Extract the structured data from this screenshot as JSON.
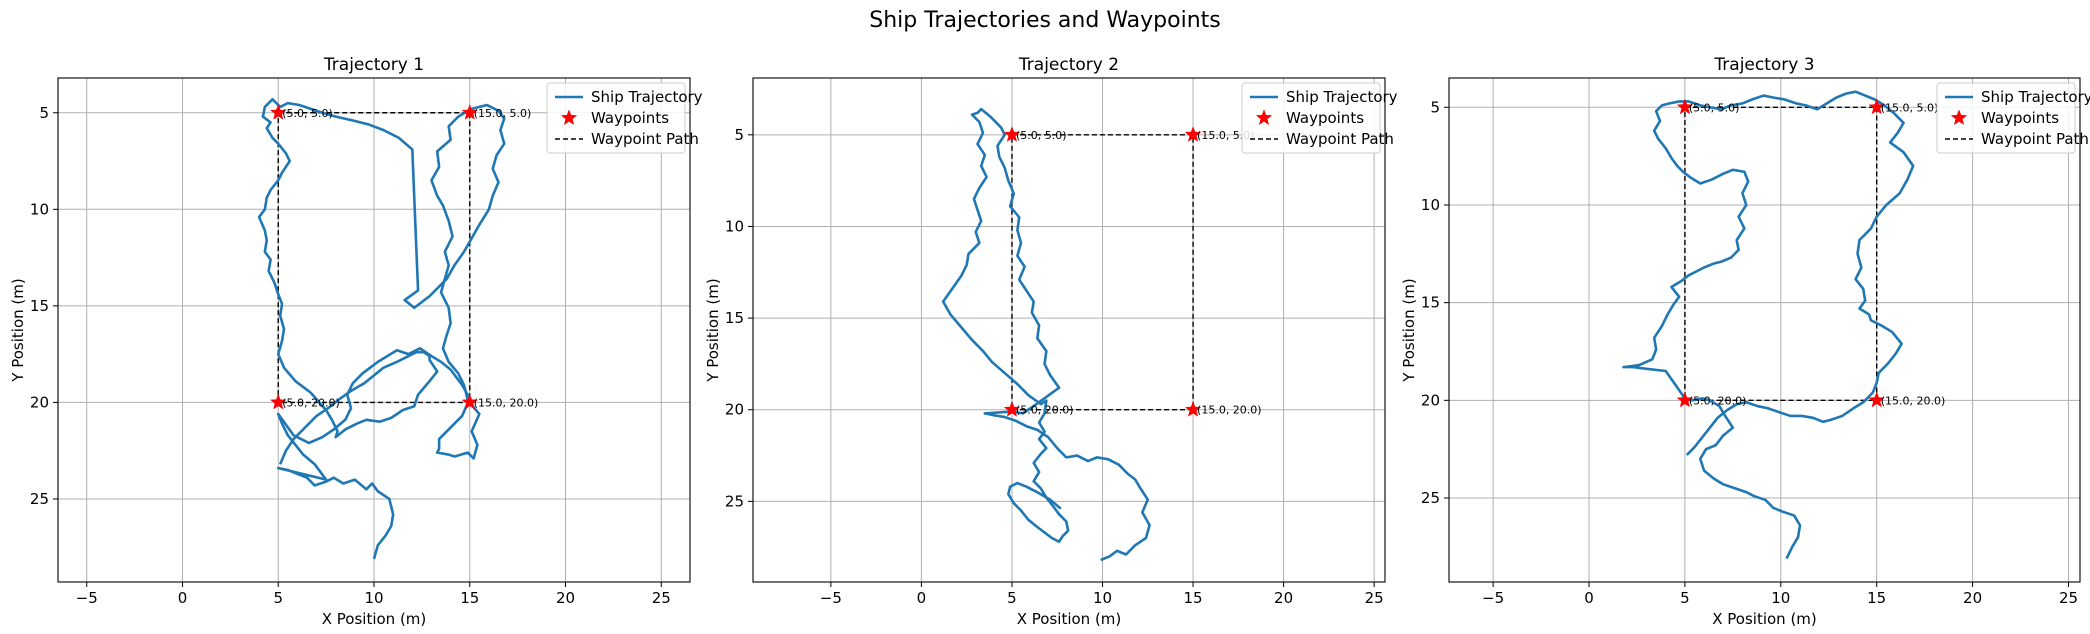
{
  "figure": {
    "title": "Ship Trajectories and Waypoints"
  },
  "colors": {
    "trajectory": "#1f77b4",
    "waypoint": "#ff0000",
    "waypoint_path": "#000000",
    "grid": "#b0b0b0"
  },
  "chart_data": [
    {
      "type": "line",
      "title": "Trajectory 1",
      "xlabel": "X Position (m)",
      "ylabel": "Y Position (m)",
      "xlim": [
        -6.5,
        26.5
      ],
      "ylim": [
        29.3,
        3.2
      ],
      "y_inverted": true,
      "xticks": [
        -5,
        0,
        5,
        10,
        15,
        20,
        25
      ],
      "yticks": [
        5,
        10,
        15,
        20,
        25
      ],
      "grid": true,
      "legend_position": "upper right",
      "legend": [
        "Ship Trajectory",
        "Waypoints",
        "Waypoint Path"
      ],
      "waypoints": [
        {
          "x": 5.0,
          "y": 5.0,
          "label": "(5.0, 5.0)"
        },
        {
          "x": 15.0,
          "y": 5.0,
          "label": "(15.0, 5.0)"
        },
        {
          "x": 15.0,
          "y": 20.0,
          "label": "(15.0, 20.0)"
        },
        {
          "x": 5.0,
          "y": 20.0,
          "label": "(5.0, 20.0)"
        }
      ],
      "waypoint_path": {
        "x": [
          5.0,
          15.0,
          15.0,
          5.0,
          5.0
        ],
        "y": [
          5.0,
          5.0,
          20.0,
          20.0,
          5.0
        ]
      },
      "series": [
        {
          "name": "Ship Trajectory",
          "x": [
            10.0,
            10.2,
            10.6,
            10.9,
            11.0,
            10.8,
            10.2,
            9.9,
            9.6,
            9.0,
            8.4,
            7.9,
            7.5,
            6.9,
            6.5,
            6.0,
            5.5,
            5.0,
            7.5,
            6.9,
            6.3,
            5.9,
            5.5,
            5.2,
            5.0,
            5.8,
            6.6,
            7.3,
            7.9,
            8.5,
            8.8,
            8.6,
            8.9,
            9.4,
            9.8,
            10.2,
            10.7,
            11.2,
            11.8,
            12.4,
            13.0,
            13.5,
            14.0,
            14.6,
            15.0,
            14.6,
            13.9,
            13.4,
            13.4,
            13.3,
            13.9,
            14.2,
            14.9,
            15.2,
            15.4,
            15.1,
            15.5,
            14.9,
            14.7,
            14.4,
            13.9,
            13.6,
            13.8,
            14.0,
            13.9,
            13.5,
            13.7,
            13.9,
            13.7,
            14.1,
            13.9,
            13.6,
            13.3,
            13.0,
            13.4,
            13.3,
            14.0,
            13.9,
            14.4,
            15.1,
            15.9,
            16.5,
            16.8,
            16.6,
            16.8,
            16.4,
            16.2,
            16.5,
            16.2,
            16.0,
            15.5,
            15.1,
            14.7,
            14.2,
            13.8,
            13.3,
            12.9,
            12.5,
            12.1,
            11.6,
            12.3,
            12.0,
            11.3,
            10.5,
            9.7,
            8.9,
            8.0,
            7.3,
            6.7,
            6.1,
            5.5,
            5.1,
            4.7,
            4.3,
            4.2,
            4.6,
            4.4,
            4.7,
            5.0,
            5.4,
            5.6,
            5.2,
            5.0,
            4.6,
            4.4,
            4.3,
            4.0,
            4.3,
            4.4,
            4.3,
            4.6,
            4.5,
            4.8,
            5.0,
            5.2,
            5.1,
            5.3,
            5.2,
            5.0,
            5.3,
            5.9,
            6.7,
            7.5,
            7.8,
            8.1,
            8.0,
            8.5,
            9.1,
            9.6,
            10.3,
            10.9,
            11.5,
            12.1,
            12.3,
            12.9,
            13.3,
            13.1,
            12.9,
            12.9,
            12.6,
            12.2,
            11.8,
            11.2,
            10.5,
            10.0,
            9.5,
            8.8,
            8.1,
            7.6,
            7.0,
            6.4,
            5.8,
            5.4,
            5.1
          ],
          "y": [
            28.1,
            27.4,
            26.9,
            26.4,
            25.8,
            25.0,
            24.6,
            24.2,
            24.5,
            24.0,
            24.2,
            23.9,
            24.1,
            24.3,
            23.9,
            23.7,
            23.5,
            23.4,
            24.0,
            23.2,
            22.7,
            22.2,
            21.7,
            21.1,
            20.6,
            21.7,
            22.1,
            21.8,
            21.4,
            20.9,
            20.3,
            19.6,
            19.0,
            18.5,
            18.2,
            17.9,
            17.6,
            17.3,
            17.5,
            17.2,
            17.6,
            17.9,
            18.3,
            19.1,
            19.8,
            20.7,
            21.4,
            21.9,
            22.4,
            22.6,
            22.7,
            22.8,
            22.6,
            22.9,
            22.2,
            21.5,
            20.6,
            19.9,
            19.1,
            18.5,
            17.9,
            17.2,
            16.5,
            15.9,
            15.1,
            14.3,
            13.6,
            12.9,
            12.2,
            11.4,
            10.6,
            9.8,
            9.3,
            8.5,
            7.8,
            7.0,
            6.4,
            5.7,
            5.2,
            4.8,
            4.6,
            4.9,
            5.3,
            5.9,
            6.6,
            7.2,
            7.9,
            8.6,
            9.3,
            10.0,
            10.8,
            11.5,
            12.2,
            12.9,
            13.6,
            14.1,
            14.5,
            14.8,
            15.1,
            14.7,
            14.2,
            6.9,
            6.3,
            5.9,
            5.6,
            5.4,
            5.2,
            5.0,
            4.8,
            4.6,
            4.5,
            4.7,
            4.3,
            4.7,
            5.2,
            5.5,
            5.8,
            6.3,
            6.6,
            7.1,
            7.5,
            8.1,
            8.5,
            9.0,
            9.4,
            10.0,
            10.4,
            11.1,
            11.6,
            12.2,
            12.6,
            13.2,
            13.8,
            14.4,
            14.9,
            15.5,
            16.2,
            16.8,
            17.5,
            18.2,
            18.9,
            19.5,
            20.4,
            20.9,
            21.5,
            21.8,
            21.4,
            21.1,
            20.9,
            21.0,
            20.8,
            20.4,
            20.2,
            19.6,
            18.9,
            18.4,
            18.1,
            17.8,
            17.6,
            17.4,
            17.4,
            17.6,
            17.9,
            18.2,
            18.6,
            19.0,
            19.4,
            19.9,
            20.3,
            20.7,
            21.3,
            21.9,
            22.5,
            23.2
          ]
        }
      ]
    },
    {
      "type": "line",
      "title": "Trajectory 2",
      "xlabel": "X Position (m)",
      "ylabel": "Y Position (m)",
      "xlim": [
        -9.3,
        25.6
      ],
      "ylim": [
        29.4,
        1.9
      ],
      "y_inverted": true,
      "xticks": [
        -5,
        0,
        5,
        10,
        15,
        20,
        25
      ],
      "yticks": [
        5,
        10,
        15,
        20,
        25
      ],
      "grid": true,
      "legend_position": "upper right",
      "legend": [
        "Ship Trajectory",
        "Waypoints",
        "Waypoint Path"
      ],
      "waypoints": [
        {
          "x": 5.0,
          "y": 5.0,
          "label": "(5.0, 5.0)"
        },
        {
          "x": 15.0,
          "y": 5.0,
          "label": "(15.0, 5.0)"
        },
        {
          "x": 15.0,
          "y": 20.0,
          "label": "(15.0, 20.0)"
        },
        {
          "x": 5.0,
          "y": 20.0,
          "label": "(5.0, 20.0)"
        }
      ],
      "waypoint_path": {
        "x": [
          5.0,
          15.0,
          15.0,
          5.0,
          5.0
        ],
        "y": [
          5.0,
          5.0,
          20.0,
          20.0,
          5.0
        ]
      },
      "series": [
        {
          "name": "Ship Trajectory",
          "x": [
            9.9,
            10.4,
            10.8,
            11.3,
            11.8,
            12.4,
            12.6,
            12.2,
            12.5,
            12.1,
            11.8,
            11.4,
            10.9,
            10.3,
            9.7,
            9.2,
            8.6,
            8.0,
            7.5,
            7.0,
            6.4,
            5.8,
            5.2,
            4.6,
            4.0,
            3.5,
            5.0,
            5.6,
            6.2,
            6.9,
            7.6,
            7.1,
            6.8,
            6.9,
            6.4,
            6.5,
            6.1,
            6.2,
            5.8,
            5.4,
            5.7,
            5.3,
            5.5,
            5.3,
            5.4,
            4.9,
            5.1,
            4.8,
            4.6,
            4.3,
            4.2,
            4.6,
            4.4,
            4.2,
            3.8,
            3.3,
            3.1,
            2.8,
            3.2,
            3.4,
            3.1,
            3.5,
            3.3,
            3.6,
            3.2,
            2.9,
            3.1,
            3.3,
            3.0,
            3.2,
            2.6,
            2.5,
            2.2,
            1.7,
            1.2,
            1.6,
            2.2,
            2.8,
            3.4,
            3.9,
            4.6,
            5.3,
            5.9,
            6.6,
            6.9,
            6.8,
            6.5,
            6.8,
            6.5,
            6.9,
            6.6,
            6.2,
            6.5,
            6.2,
            6.6,
            6.9,
            7.3,
            7.6,
            8.0,
            8.1,
            7.8,
            7.6,
            7.2,
            6.8,
            6.4,
            5.9,
            5.5,
            5.1,
            4.8,
            4.9,
            5.3,
            5.8,
            6.4,
            7.1,
            7.7
          ],
          "y": [
            28.2,
            28.0,
            27.7,
            27.9,
            27.4,
            27.0,
            26.3,
            25.6,
            24.9,
            24.3,
            23.8,
            23.5,
            23.0,
            22.7,
            22.6,
            22.8,
            22.5,
            22.6,
            22.1,
            21.5,
            21.1,
            20.9,
            20.6,
            20.4,
            20.3,
            20.2,
            20.1,
            20.2,
            19.8,
            19.3,
            18.8,
            18.1,
            17.5,
            16.8,
            16.1,
            15.4,
            14.7,
            14.1,
            13.5,
            12.9,
            12.2,
            11.6,
            10.9,
            10.2,
            9.5,
            8.9,
            8.2,
            7.5,
            6.8,
            6.2,
            5.6,
            5.0,
            4.6,
            4.4,
            4.0,
            3.6,
            3.8,
            3.9,
            4.3,
            4.9,
            5.5,
            6.1,
            6.7,
            7.3,
            7.9,
            8.5,
            9.1,
            9.7,
            10.3,
            10.9,
            11.5,
            12.1,
            12.7,
            13.4,
            14.1,
            14.8,
            15.5,
            16.2,
            16.8,
            17.4,
            18.0,
            18.6,
            19.2,
            19.7,
            19.5,
            20.2,
            20.7,
            21.2,
            21.6,
            22.1,
            22.4,
            22.9,
            23.4,
            23.9,
            24.3,
            24.8,
            25.3,
            25.7,
            26.1,
            26.6,
            26.9,
            27.2,
            27.0,
            26.7,
            26.4,
            26.0,
            25.5,
            25.1,
            24.6,
            24.2,
            24.0,
            24.2,
            24.5,
            24.9,
            25.4
          ]
        }
      ]
    },
    {
      "type": "line",
      "title": "Trajectory 3",
      "xlabel": "X Position (m)",
      "ylabel": "Y Position (m)",
      "xlim": [
        -7.3,
        25.6
      ],
      "ylim": [
        29.3,
        3.5
      ],
      "y_inverted": true,
      "xticks": [
        -5,
        0,
        5,
        10,
        15,
        20,
        25
      ],
      "yticks": [
        5,
        10,
        15,
        20,
        25
      ],
      "grid": true,
      "legend_position": "upper right",
      "legend": [
        "Ship Trajectory",
        "Waypoints",
        "Waypoint Path"
      ],
      "waypoints": [
        {
          "x": 5.0,
          "y": 5.0,
          "label": "(5.0, 5.0)"
        },
        {
          "x": 15.0,
          "y": 5.0,
          "label": "(15.0, 5.0)"
        },
        {
          "x": 15.0,
          "y": 20.0,
          "label": "(15.0, 20.0)"
        },
        {
          "x": 5.0,
          "y": 20.0,
          "label": "(5.0, 20.0)"
        }
      ],
      "waypoint_path": {
        "x": [
          5.0,
          15.0,
          15.0,
          5.0,
          5.0
        ],
        "y": [
          5.0,
          5.0,
          20.0,
          20.0,
          5.0
        ]
      },
      "series": [
        {
          "name": "Ship Trajectory",
          "x": [
            10.3,
            10.6,
            10.9,
            11.0,
            10.7,
            10.1,
            9.6,
            9.2,
            8.6,
            8.2,
            7.6,
            7.0,
            6.5,
            6.0,
            5.8,
            6.1,
            6.6,
            7.0,
            7.5,
            7.1,
            6.8,
            6.3,
            5.9,
            5.4,
            5.0,
            4.0,
            3.1,
            2.3,
            1.8,
            2.6,
            3.3,
            3.5,
            3.4,
            3.8,
            4.1,
            4.4,
            4.7,
            4.3,
            4.8,
            5.2,
            5.6,
            6.0,
            6.5,
            6.9,
            7.4,
            7.8,
            7.7,
            8.1,
            7.8,
            8.2,
            8.0,
            8.3,
            8.1,
            7.5,
            7.0,
            6.4,
            5.8,
            5.3,
            4.9,
            4.6,
            4.3,
            4.0,
            3.6,
            3.4,
            3.7,
            3.5,
            3.8,
            4.2,
            4.7,
            5.2,
            5.8,
            6.3,
            6.9,
            7.4,
            8.0,
            8.5,
            9.1,
            9.6,
            10.2,
            10.8,
            11.3,
            11.9,
            12.4,
            12.9,
            13.4,
            13.9,
            14.4,
            14.9,
            15.4,
            15.9,
            16.4,
            16.1,
            15.7,
            16.4,
            16.9,
            16.6,
            16.2,
            15.5,
            15.0,
            14.7,
            14.1,
            14.0,
            14.2,
            13.9,
            14.3,
            14.4,
            14.1,
            14.6,
            14.7,
            15.3,
            15.8,
            16.3,
            16.0,
            15.6,
            15.1,
            15.0,
            14.8,
            14.3,
            13.8,
            13.2,
            12.6,
            12.2,
            11.7,
            11.1,
            10.5,
            9.9,
            9.3,
            8.8,
            8.2,
            7.7,
            7.2,
            6.7,
            6.3,
            5.9,
            5.5,
            5.1
          ],
          "y": [
            28.1,
            27.5,
            27.0,
            26.4,
            25.9,
            25.7,
            25.5,
            25.1,
            24.9,
            24.7,
            24.5,
            24.3,
            24.0,
            23.6,
            23.0,
            22.5,
            22.3,
            21.8,
            21.4,
            20.8,
            20.3,
            20.0,
            19.9,
            20.0,
            19.9,
            18.5,
            18.4,
            18.3,
            18.3,
            18.2,
            17.9,
            17.4,
            16.8,
            16.2,
            15.6,
            15.1,
            14.7,
            14.2,
            13.9,
            13.6,
            13.4,
            13.2,
            13.0,
            12.9,
            12.7,
            12.3,
            11.8,
            11.2,
            10.6,
            10.0,
            9.4,
            8.8,
            8.3,
            8.2,
            8.4,
            8.7,
            8.9,
            8.6,
            8.3,
            8.0,
            7.6,
            7.1,
            6.6,
            6.2,
            5.7,
            5.2,
            4.9,
            4.8,
            4.7,
            4.7,
            4.9,
            5.0,
            5.1,
            4.9,
            4.8,
            4.6,
            4.4,
            4.5,
            4.6,
            4.8,
            4.9,
            5.1,
            4.8,
            4.5,
            4.3,
            4.2,
            4.4,
            4.6,
            4.9,
            5.3,
            5.8,
            6.3,
            6.8,
            7.3,
            8.0,
            8.7,
            9.4,
            10.0,
            10.6,
            11.2,
            11.8,
            12.5,
            13.2,
            13.8,
            14.3,
            14.9,
            15.3,
            15.6,
            15.9,
            16.2,
            16.5,
            17.1,
            17.6,
            18.1,
            18.6,
            19.1,
            19.6,
            20.1,
            20.4,
            20.8,
            21.0,
            21.1,
            20.9,
            20.8,
            20.8,
            20.6,
            20.4,
            20.3,
            20.1,
            20.2,
            20.5,
            20.9,
            21.4,
            21.9,
            22.4,
            22.8
          ]
        }
      ]
    }
  ]
}
